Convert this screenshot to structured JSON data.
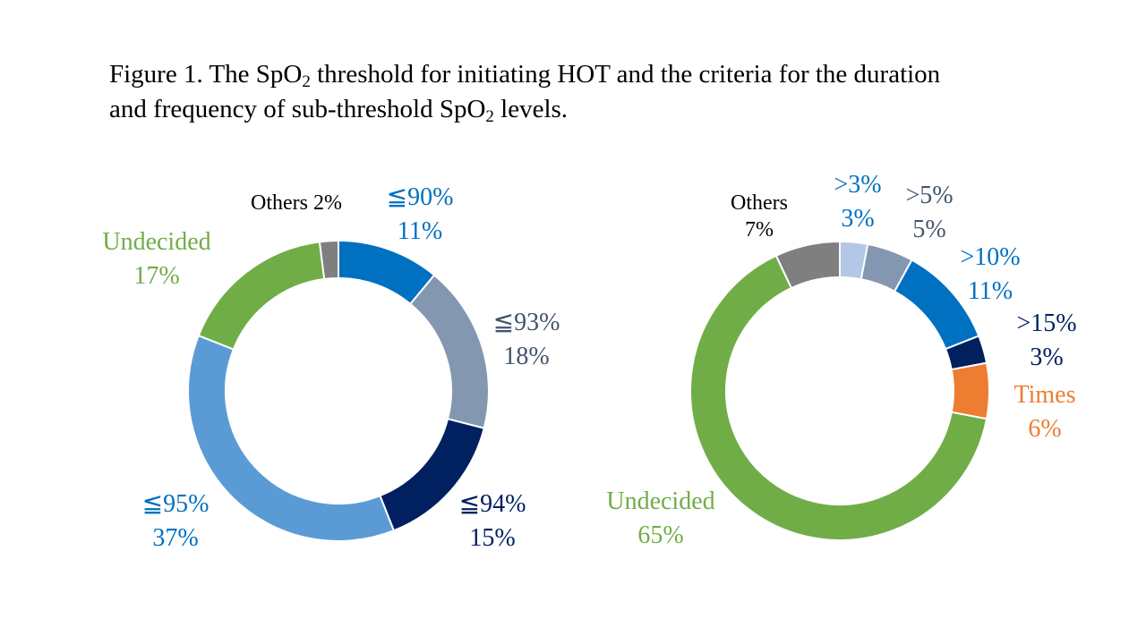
{
  "caption": {
    "line1_a": "Figure 1. The SpO",
    "line1_sub": "2",
    "line1_b": " threshold for initiating HOT and the criteria for the duration",
    "line2_a": "and frequency of sub-threshold SpO",
    "line2_sub": "2",
    "line2_b": " levels."
  },
  "chart_data": [
    {
      "type": "pie",
      "donut": true,
      "start_angle_deg": 0,
      "direction": "clockwise",
      "slices": [
        {
          "name": "≦90%",
          "value": 11,
          "label": "11%",
          "color": "#0070C0"
        },
        {
          "name": "≦93%",
          "value": 18,
          "label": "18%",
          "color": "#8497B0"
        },
        {
          "name": "≦94%",
          "value": 15,
          "label": "15%",
          "color": "#002060"
        },
        {
          "name": "≦95%",
          "value": 37,
          "label": "37%",
          "color": "#5B9BD5"
        },
        {
          "name": "Undecided",
          "value": 17,
          "label": "17%",
          "color": "#70AD47"
        },
        {
          "name": "Others",
          "value": 2,
          "label": "2%",
          "color": "#7F7F7F",
          "inline": true
        }
      ]
    },
    {
      "type": "pie",
      "donut": true,
      "start_angle_deg": 0,
      "direction": "clockwise",
      "slices": [
        {
          "name": ">3%",
          "value": 3,
          "label": "3%",
          "color": "#B4C7E7"
        },
        {
          "name": ">5%",
          "value": 5,
          "label": "5%",
          "color": "#8497B0"
        },
        {
          "name": ">10%",
          "value": 11,
          "label": "11%",
          "color": "#0070C0"
        },
        {
          "name": ">15%",
          "value": 3,
          "label": "3%",
          "color": "#002060"
        },
        {
          "name": "Times",
          "value": 6,
          "label": "6%",
          "color": "#ED7D31"
        },
        {
          "name": "Undecided",
          "value": 65,
          "label": "65%",
          "color": "#70AD47"
        },
        {
          "name": "Others",
          "value": 7,
          "label": "7%",
          "color": "#7F7F7F"
        }
      ]
    }
  ],
  "label_colors": {
    "c0070C0": "#0070C0",
    "c44546A": "#44546A",
    "c002060": "#002060",
    "c70AD47": "#70AD47",
    "cED7D31": "#ED7D31",
    "c000000": "#000000"
  }
}
